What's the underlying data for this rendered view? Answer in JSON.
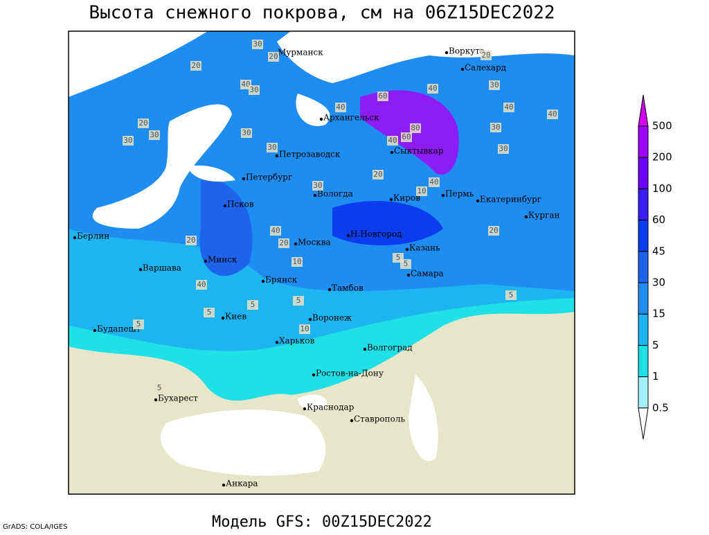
{
  "title": "Высота снежного покрова, см на 06Z15DEC2022",
  "subtitle": "Модель GFS: 00Z15DEC2022",
  "credit": "GrADS: COLA/IGES",
  "cities": [
    "Мурманск",
    "Воркута",
    "Салехард",
    "Архангельск",
    "Сыктывкар",
    "Петрозаводск",
    "Петербург",
    "Вологда",
    "Киров",
    "Пермь",
    "Екатеринбург",
    "Курган",
    "Псков",
    "Н.Новгород",
    "Берлин",
    "Москва",
    "Казань",
    "Минск",
    "Варшава",
    "Самара",
    "Брянск",
    "Тамбов",
    "Киев",
    "Воронеж",
    "Будапешт",
    "Харьков",
    "Волгоград",
    "Ростов-на-Дону",
    "Бухарест",
    "Краснодар",
    "Ставрополь",
    "Анкара"
  ],
  "contour_labels": [
    30,
    20,
    40,
    30,
    20,
    30,
    20,
    30,
    30,
    40,
    60,
    80,
    60,
    40,
    40,
    30,
    40,
    40,
    30,
    20,
    30,
    40,
    30,
    30,
    20,
    40,
    20,
    40,
    20,
    10,
    5,
    5,
    5,
    10,
    20,
    5,
    5,
    5,
    10,
    5,
    5
  ],
  "legend": {
    "levels": [
      0.5,
      1,
      5,
      15,
      30,
      45,
      60,
      100,
      200,
      500
    ],
    "colors": [
      "#ffffff",
      "#a0f0fa",
      "#1ee0e6",
      "#1eb4f0",
      "#1e8cf0",
      "#1e64eb",
      "#0a3cf0",
      "#3c1ef5",
      "#6e00f5",
      "#9e00ff",
      "#d200f0"
    ]
  }
}
